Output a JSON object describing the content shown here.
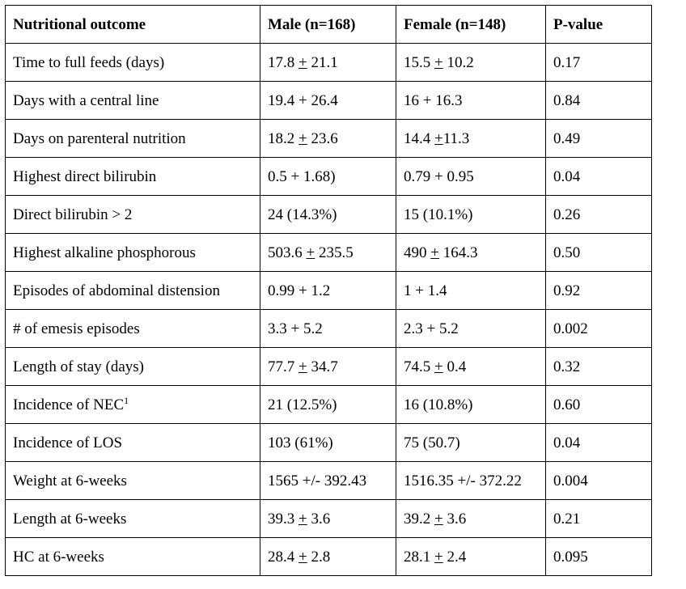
{
  "table": {
    "headers": [
      "Nutritional outcome",
      "Male (n=168)",
      "Female (n=148)",
      "P-value"
    ],
    "rows": [
      {
        "outcome": "Time to full feeds (days)",
        "male": [
          "17.8 ",
          "+",
          " 21.1"
        ],
        "female": [
          "15.5 ",
          "+",
          " 10.2"
        ],
        "p": "0.17"
      },
      {
        "outcome": "Days with a central line",
        "male": [
          "19.4 + 26.4",
          "",
          ""
        ],
        "female": [
          "16 + 16.3",
          "",
          ""
        ],
        "p": "0.84"
      },
      {
        "outcome": "Days on parenteral nutrition",
        "male": [
          "18.2 ",
          "+",
          " 23.6"
        ],
        "female": [
          "14.4 ",
          "+",
          "11.3"
        ],
        "p": "0.49"
      },
      {
        "outcome": "Highest direct bilirubin",
        "male": [
          "0.5 + 1.68)",
          "",
          ""
        ],
        "female": [
          "0.79 + 0.95",
          "",
          ""
        ],
        "p": "0.04"
      },
      {
        "outcome": "Direct bilirubin > 2",
        "male": [
          "24 (14.3%)",
          "",
          ""
        ],
        "female": [
          "15 (10.1%)",
          "",
          ""
        ],
        "p": "0.26"
      },
      {
        "outcome": "Highest alkaline phosphorous",
        "male": [
          "503.6 ",
          "+",
          " 235.5"
        ],
        "female": [
          "490 ",
          "+",
          " 164.3"
        ],
        "p": "0.50"
      },
      {
        "outcome": "Episodes of abdominal distension",
        "male": [
          "0.99 + 1.2",
          "",
          ""
        ],
        "female": [
          "1 + 1.4",
          "",
          ""
        ],
        "p": "0.92"
      },
      {
        "outcome": "# of emesis episodes",
        "male": [
          "3.3 + 5.2",
          "",
          ""
        ],
        "female": [
          "2.3 + 5.2",
          "",
          ""
        ],
        "p": "0.002"
      },
      {
        "outcome": "Length of stay (days)",
        "male": [
          "77.7 ",
          "+",
          " 34.7"
        ],
        "female": [
          "74.5 ",
          "+",
          " 0.4"
        ],
        "p": "0.32"
      },
      {
        "outcome": "Incidence of NEC",
        "sup": "1",
        "male": [
          "21 (12.5%)",
          "",
          ""
        ],
        "female": [
          "16 (10.8%)",
          "",
          ""
        ],
        "p": "0.60"
      },
      {
        "outcome": "Incidence of LOS",
        "male": [
          "103 (61%)",
          "",
          ""
        ],
        "female": [
          "75 (50.7)",
          "",
          ""
        ],
        "p": "0.04"
      },
      {
        "outcome": "Weight at 6-weeks",
        "male": [
          "1565 +/- 392.43",
          "",
          ""
        ],
        "female": [
          "1516.35 +/- 372.22",
          "",
          ""
        ],
        "p": "0.004"
      },
      {
        "outcome": "Length at 6-weeks",
        "male": [
          "39.3 ",
          "+",
          " 3.6"
        ],
        "female": [
          "39.2 ",
          "+",
          " 3.6"
        ],
        "p": "0.21"
      },
      {
        "outcome": "HC at 6-weeks",
        "male": [
          "28.4 ",
          "+",
          " 2.8"
        ],
        "female": [
          "28.1 ",
          "+",
          " 2.4"
        ],
        "p": "0.095"
      }
    ]
  }
}
